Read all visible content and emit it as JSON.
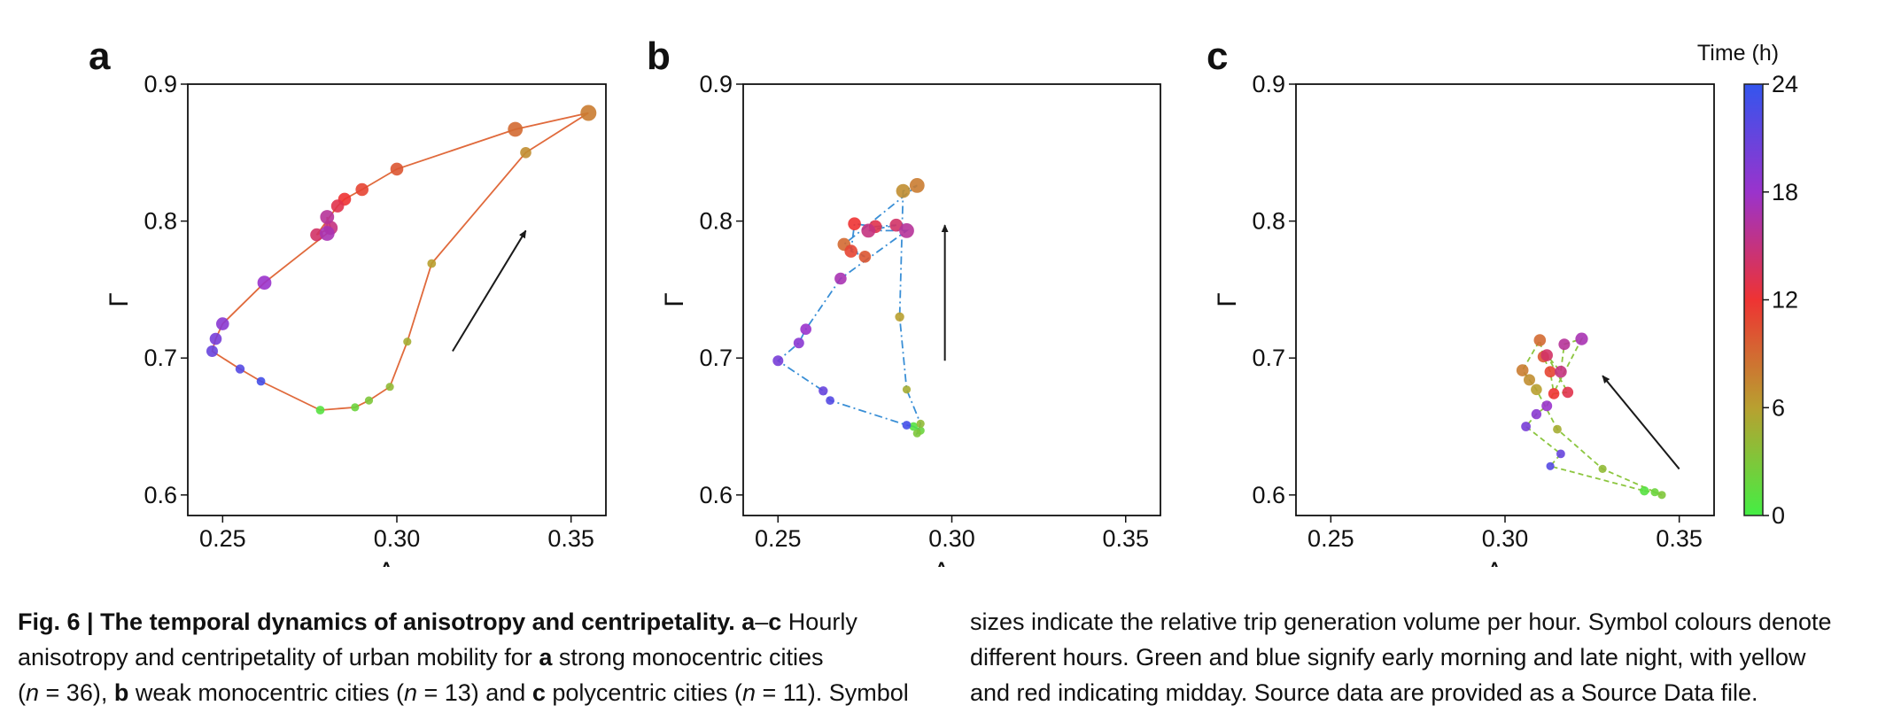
{
  "chart_data": [
    {
      "type": "scatter",
      "panel_label": "a",
      "xlabel": "Λ",
      "ylabel": "Γ",
      "xlim": [
        0.24,
        0.36
      ],
      "ylim": [
        0.585,
        0.9
      ],
      "xticks": [
        "0.25",
        "0.30",
        "0.35"
      ],
      "yticks": [
        "0.6",
        "0.7",
        "0.8",
        "0.9"
      ],
      "line_color": "#e06a3c",
      "line_style": "solid",
      "points": [
        {
          "x": 0.278,
          "y": 0.662,
          "hour": 1,
          "size": 0.25
        },
        {
          "x": 0.288,
          "y": 0.664,
          "hour": 2,
          "size": 0.2
        },
        {
          "x": 0.292,
          "y": 0.669,
          "hour": 3,
          "size": 0.2
        },
        {
          "x": 0.298,
          "y": 0.679,
          "hour": 4,
          "size": 0.2
        },
        {
          "x": 0.303,
          "y": 0.712,
          "hour": 5,
          "size": 0.2
        },
        {
          "x": 0.31,
          "y": 0.769,
          "hour": 6,
          "size": 0.25
        },
        {
          "x": 0.337,
          "y": 0.85,
          "hour": 7,
          "size": 0.5
        },
        {
          "x": 0.355,
          "y": 0.879,
          "hour": 8,
          "size": 1.0
        },
        {
          "x": 0.334,
          "y": 0.867,
          "hour": 9,
          "size": 0.9
        },
        {
          "x": 0.3,
          "y": 0.838,
          "hour": 10,
          "size": 0.7
        },
        {
          "x": 0.29,
          "y": 0.823,
          "hour": 11,
          "size": 0.7
        },
        {
          "x": 0.285,
          "y": 0.816,
          "hour": 12,
          "size": 0.7
        },
        {
          "x": 0.283,
          "y": 0.811,
          "hour": 13,
          "size": 0.7
        },
        {
          "x": 0.277,
          "y": 0.79,
          "hour": 14,
          "size": 0.7
        },
        {
          "x": 0.281,
          "y": 0.795,
          "hour": 15,
          "size": 0.8
        },
        {
          "x": 0.28,
          "y": 0.803,
          "hour": 16,
          "size": 0.8
        },
        {
          "x": 0.28,
          "y": 0.791,
          "hour": 17,
          "size": 0.9
        },
        {
          "x": 0.262,
          "y": 0.755,
          "hour": 18,
          "size": 0.8
        },
        {
          "x": 0.25,
          "y": 0.725,
          "hour": 19,
          "size": 0.7
        },
        {
          "x": 0.248,
          "y": 0.714,
          "hour": 20,
          "size": 0.6
        },
        {
          "x": 0.247,
          "y": 0.705,
          "hour": 21,
          "size": 0.55
        },
        {
          "x": 0.255,
          "y": 0.692,
          "hour": 22,
          "size": 0.3
        },
        {
          "x": 0.261,
          "y": 0.683,
          "hour": 23,
          "size": 0.25
        }
      ],
      "arrow": {
        "from": [
          0.316,
          0.705
        ],
        "to": [
          0.337,
          0.793
        ]
      }
    },
    {
      "type": "scatter",
      "panel_label": "b",
      "xlabel": "Λ",
      "ylabel": "Γ",
      "xlim": [
        0.24,
        0.36
      ],
      "ylim": [
        0.585,
        0.9
      ],
      "xticks": [
        "0.25",
        "0.30",
        "0.35"
      ],
      "yticks": [
        "0.6",
        "0.7",
        "0.8",
        "0.9"
      ],
      "line_color": "#3a8fd6",
      "line_style": "dashdot",
      "points": [
        {
          "x": 0.289,
          "y": 0.65,
          "hour": 1,
          "size": 0.25
        },
        {
          "x": 0.291,
          "y": 0.647,
          "hour": 2,
          "size": 0.2
        },
        {
          "x": 0.29,
          "y": 0.645,
          "hour": 3,
          "size": 0.2
        },
        {
          "x": 0.291,
          "y": 0.652,
          "hour": 4,
          "size": 0.2
        },
        {
          "x": 0.287,
          "y": 0.677,
          "hour": 5,
          "size": 0.2
        },
        {
          "x": 0.285,
          "y": 0.73,
          "hour": 6,
          "size": 0.3
        },
        {
          "x": 0.286,
          "y": 0.822,
          "hour": 7,
          "size": 0.8
        },
        {
          "x": 0.29,
          "y": 0.826,
          "hour": 8,
          "size": 0.9
        },
        {
          "x": 0.269,
          "y": 0.783,
          "hour": 9,
          "size": 0.7
        },
        {
          "x": 0.275,
          "y": 0.774,
          "hour": 10,
          "size": 0.6
        },
        {
          "x": 0.271,
          "y": 0.778,
          "hour": 11,
          "size": 0.7
        },
        {
          "x": 0.272,
          "y": 0.798,
          "hour": 12,
          "size": 0.7
        },
        {
          "x": 0.278,
          "y": 0.796,
          "hour": 13,
          "size": 0.7
        },
        {
          "x": 0.284,
          "y": 0.797,
          "hour": 14,
          "size": 0.7
        },
        {
          "x": 0.276,
          "y": 0.793,
          "hour": 15,
          "size": 0.8
        },
        {
          "x": 0.287,
          "y": 0.793,
          "hour": 16,
          "size": 0.9
        },
        {
          "x": 0.268,
          "y": 0.758,
          "hour": 17,
          "size": 0.6
        },
        {
          "x": 0.258,
          "y": 0.721,
          "hour": 18,
          "size": 0.5
        },
        {
          "x": 0.256,
          "y": 0.711,
          "hour": 19,
          "size": 0.45
        },
        {
          "x": 0.25,
          "y": 0.698,
          "hour": 20,
          "size": 0.45
        },
        {
          "x": 0.263,
          "y": 0.676,
          "hour": 21,
          "size": 0.3
        },
        {
          "x": 0.265,
          "y": 0.669,
          "hour": 22,
          "size": 0.25
        },
        {
          "x": 0.287,
          "y": 0.651,
          "hour": 23,
          "size": 0.25
        }
      ],
      "arrow": {
        "from": [
          0.298,
          0.698
        ],
        "to": [
          0.298,
          0.797
        ]
      }
    },
    {
      "type": "scatter",
      "panel_label": "c",
      "xlabel": "Λ",
      "ylabel": "Γ",
      "xlim": [
        0.24,
        0.36
      ],
      "ylim": [
        0.585,
        0.9
      ],
      "xticks": [
        "0.25",
        "0.30",
        "0.35"
      ],
      "yticks": [
        "0.6",
        "0.7",
        "0.8",
        "0.9"
      ],
      "line_color": "#8cc63f",
      "line_style": "dashed",
      "points": [
        {
          "x": 0.34,
          "y": 0.603,
          "hour": 1,
          "size": 0.3
        },
        {
          "x": 0.343,
          "y": 0.602,
          "hour": 2,
          "size": 0.2
        },
        {
          "x": 0.345,
          "y": 0.6,
          "hour": 3,
          "size": 0.2
        },
        {
          "x": 0.328,
          "y": 0.619,
          "hour": 4,
          "size": 0.2
        },
        {
          "x": 0.315,
          "y": 0.648,
          "hour": 5,
          "size": 0.25
        },
        {
          "x": 0.309,
          "y": 0.677,
          "hour": 6,
          "size": 0.5
        },
        {
          "x": 0.307,
          "y": 0.684,
          "hour": 7,
          "size": 0.55
        },
        {
          "x": 0.305,
          "y": 0.691,
          "hour": 8,
          "size": 0.6
        },
        {
          "x": 0.31,
          "y": 0.713,
          "hour": 9,
          "size": 0.6
        },
        {
          "x": 0.311,
          "y": 0.701,
          "hour": 10,
          "size": 0.55
        },
        {
          "x": 0.313,
          "y": 0.69,
          "hour": 11,
          "size": 0.55
        },
        {
          "x": 0.314,
          "y": 0.674,
          "hour": 12,
          "size": 0.5
        },
        {
          "x": 0.318,
          "y": 0.675,
          "hour": 13,
          "size": 0.5
        },
        {
          "x": 0.312,
          "y": 0.702,
          "hour": 14,
          "size": 0.6
        },
        {
          "x": 0.316,
          "y": 0.69,
          "hour": 15,
          "size": 0.6
        },
        {
          "x": 0.317,
          "y": 0.71,
          "hour": 16,
          "size": 0.55
        },
        {
          "x": 0.322,
          "y": 0.714,
          "hour": 17,
          "size": 0.65
        },
        {
          "x": 0.312,
          "y": 0.665,
          "hour": 18,
          "size": 0.45
        },
        {
          "x": 0.309,
          "y": 0.659,
          "hour": 19,
          "size": 0.4
        },
        {
          "x": 0.306,
          "y": 0.65,
          "hour": 20,
          "size": 0.35
        },
        {
          "x": 0.316,
          "y": 0.63,
          "hour": 21,
          "size": 0.25
        },
        {
          "x": 0.313,
          "y": 0.621,
          "hour": 22,
          "size": 0.2
        }
      ],
      "arrow": {
        "from": [
          0.35,
          0.619
        ],
        "to": [
          0.328,
          0.687
        ]
      }
    }
  ],
  "colorbar": {
    "title": "Time (h)",
    "ticks": [
      "0",
      "6",
      "12",
      "18",
      "24"
    ],
    "range": [
      0,
      24
    ],
    "color_stops": [
      "#44ee44",
      "#b8a030",
      "#ee3333",
      "#9a33cc",
      "#3355ee"
    ]
  },
  "caption": {
    "left_lines": [
      [
        {
          "t": "Fig. 6 | The temporal dynamics of anisotropy and centripetality. a",
          "s": "b"
        },
        {
          "t": "–",
          "s": "n"
        },
        {
          "t": "c",
          "s": "b"
        },
        {
          "t": " Hourly",
          "s": "n"
        }
      ],
      [
        {
          "t": "anisotropy and centripetality of urban mobility for ",
          "s": "n"
        },
        {
          "t": "a",
          "s": "b"
        },
        {
          "t": " strong monocentric cities",
          "s": "n"
        }
      ],
      [
        {
          "t": "(",
          "s": "n"
        },
        {
          "t": "n",
          "s": "i"
        },
        {
          "t": " = 36), ",
          "s": "n"
        },
        {
          "t": "b",
          "s": "b"
        },
        {
          "t": " weak monocentric cities (",
          "s": "n"
        },
        {
          "t": "n",
          "s": "i"
        },
        {
          "t": " = 13) and ",
          "s": "n"
        },
        {
          "t": "c",
          "s": "b"
        },
        {
          "t": " polycentric cities (",
          "s": "n"
        },
        {
          "t": "n",
          "s": "i"
        },
        {
          "t": " = 11). Symbol",
          "s": "n"
        }
      ]
    ],
    "right_lines": [
      [
        {
          "t": "sizes indicate the relative trip generation volume per hour. Symbol colours denote",
          "s": "n"
        }
      ],
      [
        {
          "t": "different hours. Green and blue signify early morning and late night, with yellow",
          "s": "n"
        }
      ],
      [
        {
          "t": "and red indicating midday. Source data are provided as a Source Data file.",
          "s": "n"
        }
      ]
    ]
  }
}
